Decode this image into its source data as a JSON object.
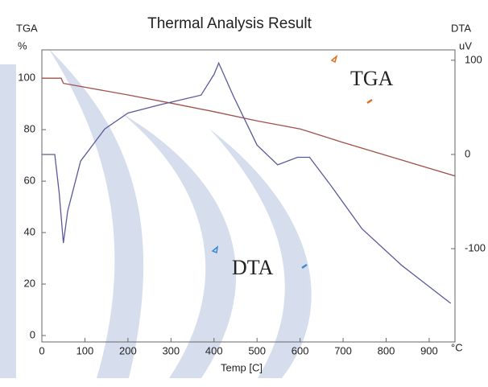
{
  "chart_data": {
    "type": "line",
    "title": "Thermal Analysis Result",
    "y_axis_name": "TGA",
    "y_unit": "%",
    "y2_axis_name": "DTA",
    "y2_unit": "uV",
    "x_label": "Temp [C]",
    "x_unit": "°C",
    "xlim": [
      0,
      960
    ],
    "xticks": [
      0,
      100,
      200,
      300,
      400,
      500,
      600,
      700,
      800,
      900
    ],
    "ylim": [
      -2.5,
      111
    ],
    "yticks": [
      0,
      20,
      40,
      60,
      80,
      100
    ],
    "y2lim": [
      -199,
      111
    ],
    "y2ticks": [
      -100,
      0,
      100
    ],
    "annotations": [
      "TGA",
      "DTA"
    ],
    "series": [
      {
        "name": "TGA",
        "color": "#a0504a",
        "x": [
          0,
          45,
          50,
          100,
          200,
          300,
          400,
          500,
          600,
          700,
          800,
          900,
          960
        ],
        "values": [
          100,
          100,
          98,
          96.5,
          93.5,
          90.3,
          87,
          83.4,
          80.3,
          75,
          70,
          65,
          62
        ]
      },
      {
        "name": "DTA",
        "color": "#5a5a9a",
        "axis": "y2",
        "x": [
          0,
          30,
          40,
          50,
          60,
          90,
          146,
          200,
          277,
          370,
          400,
          411,
          445,
          500,
          548,
          594,
          622,
          670,
          744,
          837,
          950
        ],
        "values": [
          0,
          0,
          -40,
          -94,
          -60,
          -7,
          27,
          44,
          53,
          63,
          85,
          97,
          62,
          10,
          -11,
          -3,
          -3,
          -32,
          -79,
          -118,
          -158
        ]
      }
    ]
  }
}
